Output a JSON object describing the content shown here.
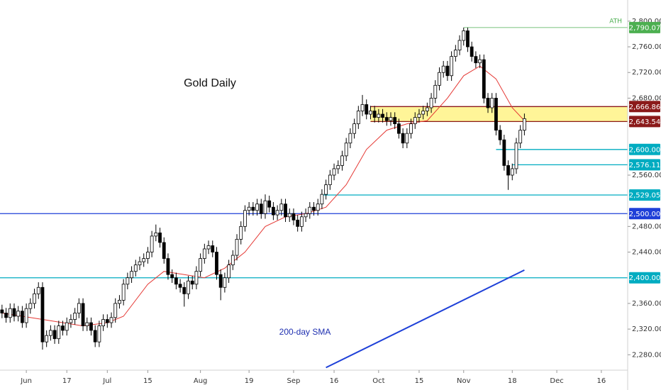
{
  "chart_data": {
    "type": "candlestick",
    "title": "Gold Daily",
    "annotations": [
      "200-day SMA",
      "ATH"
    ],
    "up_color": "#ffffff",
    "down_color": "#000000",
    "xlim": [
      -0.5,
      154.5
    ],
    "xticks": [
      {
        "value": 6,
        "label": "Jun"
      },
      {
        "value": 16,
        "label": "17"
      },
      {
        "value": 26,
        "label": "Jul"
      },
      {
        "value": 36,
        "label": "15"
      },
      {
        "value": 49,
        "label": "Aug"
      },
      {
        "value": 61,
        "label": "19"
      },
      {
        "value": 72,
        "label": "Sep"
      },
      {
        "value": 82,
        "label": "16"
      },
      {
        "value": 93,
        "label": "Oct"
      },
      {
        "value": 103,
        "label": "15"
      },
      {
        "value": 114,
        "label": "Nov"
      },
      {
        "value": 126,
        "label": "18"
      },
      {
        "value": 137,
        "label": "Dec"
      },
      {
        "value": 148,
        "label": "16"
      }
    ],
    "ylim": [
      2256,
      2833
    ],
    "yticks": [
      {
        "value": 2800,
        "label": "2,800.00"
      },
      {
        "value": 2760,
        "label": "2,760.00"
      },
      {
        "value": 2720,
        "label": "2,720.00"
      },
      {
        "value": 2680,
        "label": "2,680.00"
      },
      {
        "value": 2560,
        "label": "2,560.00"
      },
      {
        "value": 2480,
        "label": "2,480.00"
      },
      {
        "value": 2440,
        "label": "2,440.00"
      },
      {
        "value": 2360,
        "label": "2,360.00"
      },
      {
        "value": 2320,
        "label": "2,320.00"
      },
      {
        "value": 2280,
        "label": "2,280.00"
      }
    ],
    "open": [
      2350,
      2345,
      2338,
      2352,
      2340,
      2348,
      2330,
      2352,
      2360,
      2375,
      2385,
      2300,
      2310,
      2318,
      2305,
      2325,
      2318,
      2330,
      2335,
      2345,
      2360,
      2325,
      2330,
      2318,
      2300,
      2325,
      2335,
      2330,
      2338,
      2360,
      2365,
      2390,
      2400,
      2410,
      2420,
      2425,
      2430,
      2440,
      2465,
      2470,
      2455,
      2430,
      2405,
      2400,
      2390,
      2385,
      2375,
      2395,
      2390,
      2410,
      2430,
      2445,
      2450,
      2440,
      2405,
      2385,
      2400,
      2420,
      2435,
      2460,
      2480,
      2505,
      2510,
      2505,
      2515,
      2500,
      2520,
      2510,
      2498,
      2505,
      2515,
      2495,
      2500,
      2490,
      2480,
      2495,
      2500,
      2510,
      2505,
      2515,
      2530,
      2545,
      2560,
      2570,
      2575,
      2590,
      2610,
      2625,
      2640,
      2660,
      2670,
      2655,
      2660,
      2650,
      2655,
      2650,
      2645,
      2650,
      2640,
      2625,
      2610,
      2625,
      2640,
      2650,
      2655,
      2660,
      2665,
      2680,
      2700,
      2720,
      2730,
      2715,
      2745,
      2755,
      2770,
      2785,
      2760,
      2745,
      2735,
      2740,
      2680,
      2665,
      2680,
      2630,
      2615,
      2575,
      2560,
      2570,
      2610,
      2630
    ],
    "high": [
      2358,
      2353,
      2360,
      2360,
      2356,
      2356,
      2360,
      2368,
      2383,
      2393,
      2393,
      2318,
      2326,
      2326,
      2333,
      2333,
      2338,
      2343,
      2353,
      2368,
      2368,
      2338,
      2338,
      2326,
      2333,
      2343,
      2343,
      2346,
      2368,
      2373,
      2398,
      2408,
      2418,
      2428,
      2433,
      2438,
      2448,
      2473,
      2483,
      2478,
      2463,
      2438,
      2413,
      2408,
      2398,
      2393,
      2403,
      2403,
      2418,
      2438,
      2453,
      2458,
      2458,
      2448,
      2413,
      2408,
      2428,
      2443,
      2468,
      2488,
      2513,
      2518,
      2518,
      2523,
      2523,
      2530,
      2528,
      2518,
      2513,
      2523,
      2523,
      2508,
      2508,
      2498,
      2503,
      2508,
      2518,
      2518,
      2523,
      2538,
      2553,
      2568,
      2578,
      2583,
      2598,
      2618,
      2633,
      2648,
      2668,
      2685,
      2678,
      2668,
      2668,
      2663,
      2663,
      2658,
      2658,
      2658,
      2648,
      2633,
      2633,
      2648,
      2658,
      2663,
      2668,
      2673,
      2688,
      2708,
      2728,
      2738,
      2738,
      2753,
      2763,
      2778,
      2790,
      2790,
      2768,
      2753,
      2748,
      2748,
      2688,
      2688,
      2688,
      2638,
      2623,
      2583,
      2578,
      2618,
      2638,
      2656
    ],
    "low": [
      2337,
      2330,
      2330,
      2332,
      2332,
      2322,
      2322,
      2344,
      2352,
      2367,
      2288,
      2292,
      2302,
      2297,
      2297,
      2310,
      2310,
      2322,
      2327,
      2337,
      2317,
      2317,
      2310,
      2292,
      2292,
      2317,
      2322,
      2322,
      2330,
      2352,
      2357,
      2382,
      2392,
      2402,
      2412,
      2417,
      2422,
      2432,
      2457,
      2447,
      2422,
      2397,
      2392,
      2382,
      2377,
      2355,
      2367,
      2382,
      2382,
      2402,
      2422,
      2437,
      2432,
      2397,
      2365,
      2377,
      2392,
      2412,
      2427,
      2452,
      2472,
      2497,
      2497,
      2497,
      2492,
      2492,
      2502,
      2490,
      2490,
      2497,
      2487,
      2487,
      2482,
      2472,
      2472,
      2487,
      2492,
      2497,
      2497,
      2507,
      2522,
      2537,
      2552,
      2562,
      2567,
      2582,
      2602,
      2617,
      2632,
      2652,
      2647,
      2647,
      2642,
      2642,
      2642,
      2637,
      2637,
      2632,
      2617,
      2602,
      2602,
      2617,
      2632,
      2642,
      2647,
      2652,
      2657,
      2672,
      2692,
      2712,
      2707,
      2707,
      2737,
      2747,
      2762,
      2752,
      2737,
      2727,
      2727,
      2672,
      2657,
      2657,
      2622,
      2607,
      2567,
      2537,
      2552,
      2562,
      2602,
      2622
    ],
    "close": [
      2345,
      2338,
      2352,
      2340,
      2348,
      2330,
      2352,
      2360,
      2375,
      2385,
      2300,
      2310,
      2318,
      2305,
      2325,
      2318,
      2330,
      2335,
      2345,
      2360,
      2325,
      2330,
      2318,
      2300,
      2325,
      2335,
      2330,
      2338,
      2360,
      2365,
      2390,
      2400,
      2410,
      2420,
      2425,
      2430,
      2440,
      2465,
      2470,
      2455,
      2430,
      2405,
      2400,
      2390,
      2385,
      2375,
      2395,
      2390,
      2410,
      2430,
      2445,
      2450,
      2440,
      2405,
      2385,
      2400,
      2420,
      2435,
      2460,
      2480,
      2505,
      2510,
      2505,
      2515,
      2500,
      2520,
      2510,
      2498,
      2505,
      2515,
      2495,
      2500,
      2490,
      2480,
      2495,
      2500,
      2510,
      2505,
      2515,
      2530,
      2545,
      2560,
      2570,
      2575,
      2590,
      2610,
      2625,
      2640,
      2660,
      2670,
      2655,
      2660,
      2650,
      2655,
      2650,
      2645,
      2650,
      2640,
      2625,
      2610,
      2625,
      2640,
      2650,
      2655,
      2660,
      2665,
      2680,
      2700,
      2720,
      2730,
      2715,
      2745,
      2755,
      2770,
      2785,
      2760,
      2745,
      2735,
      2740,
      2680,
      2665,
      2680,
      2630,
      2615,
      2575,
      2560,
      2570,
      2610,
      2630,
      2648
    ],
    "ma20": {
      "color": "#e53935",
      "x": [
        0,
        10,
        20,
        26,
        30,
        36,
        40,
        45,
        50,
        55,
        60,
        65,
        70,
        75,
        80,
        85,
        90,
        95,
        100,
        105,
        110,
        114,
        118,
        122,
        126,
        129
      ],
      "values": [
        2345,
        2335,
        2325,
        2330,
        2340,
        2390,
        2410,
        2405,
        2400,
        2415,
        2440,
        2480,
        2495,
        2500,
        2510,
        2545,
        2600,
        2630,
        2640,
        2645,
        2680,
        2715,
        2730,
        2710,
        2665,
        2645
      ]
    },
    "sma200": {
      "color": "#1e40d8",
      "x": [
        80,
        129
      ],
      "values": [
        2260,
        2412
      ]
    },
    "zone": {
      "low": 2643.54,
      "high": 2666.86,
      "from": 91,
      "color": "#fff176"
    },
    "levels": [
      {
        "value": 2790.07,
        "label": "2,790.07",
        "color": "#4caf50",
        "from": 114
      },
      {
        "value": 2666.86,
        "label": "2,666.86",
        "color": "#8b1a1a",
        "from": 91
      },
      {
        "value": 2643.54,
        "label": "2,643.54",
        "color": "#8b1a1a",
        "from": 91
      },
      {
        "value": 2600,
        "label": "2,600.00",
        "color": "#00acc1",
        "from": 122
      },
      {
        "value": 2576.11,
        "label": "2,576.11",
        "color": "#00acc1",
        "from": 126
      },
      {
        "value": 2529.05,
        "label": "2,529.05",
        "color": "#00acc1",
        "from": 79
      },
      {
        "value": 2500,
        "label": "2,500.00",
        "color": "#1e3fd8",
        "from": -0.5
      },
      {
        "value": 2400,
        "label": "2,400.00",
        "color": "#00acc1",
        "from": -0.5
      }
    ]
  }
}
